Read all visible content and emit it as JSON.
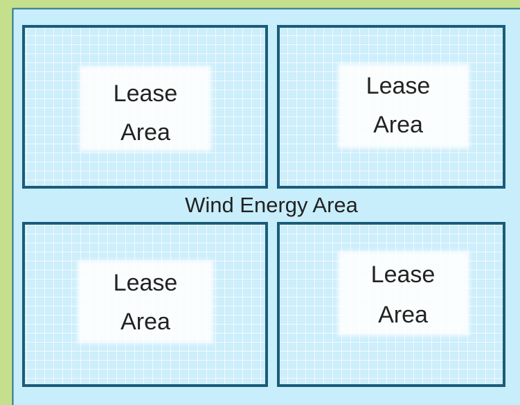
{
  "title": "Wind Energy Area",
  "lease_areas": [
    {
      "lines": [
        "Lease",
        "Area"
      ]
    },
    {
      "lines": [
        "Lease",
        "Area"
      ]
    },
    {
      "lines": [
        "Lease",
        "Area"
      ]
    },
    {
      "lines": [
        "Lease",
        "Area"
      ]
    }
  ]
}
